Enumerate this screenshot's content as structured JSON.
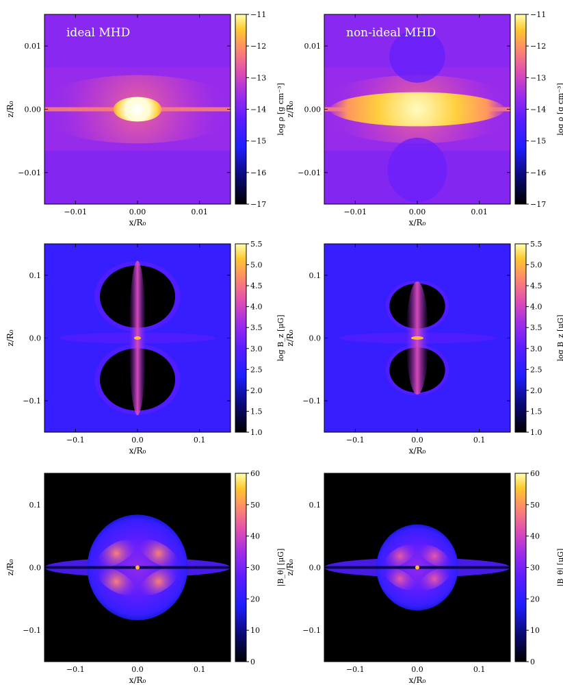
{
  "chart_data": [
    {
      "type": "heatmap",
      "panel": "density-ideal",
      "title": "ideal MHD",
      "xlabel": "x/R₀",
      "ylabel": "z/R₀",
      "colorbar_label": "log ρ [g cm⁻³]",
      "xlim": [
        -0.015,
        0.015
      ],
      "ylim": [
        -0.015,
        0.015
      ],
      "xticks": [
        -0.01,
        0.0,
        0.01
      ],
      "yticks": [
        -0.01,
        0.0,
        0.01
      ],
      "xtick_labels": [
        "−0.01",
        "0.00",
        "0.01"
      ],
      "ytick_labels": [
        "−0.01",
        "0.00",
        "0.01"
      ],
      "clim": [
        -17,
        -11
      ],
      "cticks": [
        -17,
        -16,
        -15,
        -14,
        -13,
        -12,
        -11
      ],
      "ctick_labels": [
        "−17",
        "−16",
        "−15",
        "−14",
        "−13",
        "−12",
        "−11"
      ],
      "colormap": "gnuplot2",
      "structure": "compact-bright-core"
    },
    {
      "type": "heatmap",
      "panel": "density-nonideal",
      "title": "non-ideal MHD",
      "xlabel": "x/R₀",
      "ylabel": "z/R₀",
      "colorbar_label": "log ρ [g cm⁻³]",
      "xlim": [
        -0.015,
        0.015
      ],
      "ylim": [
        -0.015,
        0.015
      ],
      "xticks": [
        -0.01,
        0.0,
        0.01
      ],
      "yticks": [
        -0.01,
        0.0,
        0.01
      ],
      "xtick_labels": [
        "−0.01",
        "0.00",
        "0.01"
      ],
      "ytick_labels": [
        "−0.01",
        "0.00",
        "0.01"
      ],
      "clim": [
        -17,
        -11
      ],
      "cticks": [
        -17,
        -16,
        -15,
        -14,
        -13,
        -12,
        -11
      ],
      "ctick_labels": [
        "−17",
        "−16",
        "−15",
        "−14",
        "−13",
        "−12",
        "−11"
      ],
      "colormap": "gnuplot2",
      "structure": "extended-disc"
    },
    {
      "type": "heatmap",
      "panel": "bz-ideal",
      "title": "",
      "xlabel": "x/R₀",
      "ylabel": "z/R₀",
      "colorbar_label": "log B_z [μG]",
      "xlim": [
        -0.15,
        0.15
      ],
      "ylim": [
        -0.15,
        0.15
      ],
      "xticks": [
        -0.1,
        0.0,
        0.1
      ],
      "yticks": [
        -0.1,
        0.0,
        0.1
      ],
      "xtick_labels": [
        "−0.1",
        "0.0",
        "0.1"
      ],
      "ytick_labels": [
        "−0.1",
        "0.0",
        "0.1"
      ],
      "clim": [
        1.0,
        5.5
      ],
      "cticks": [
        1.0,
        1.5,
        2.0,
        2.5,
        3.0,
        3.5,
        4.0,
        4.5,
        5.0,
        5.5
      ],
      "ctick_labels": [
        "1.0",
        "1.5",
        "2.0",
        "2.5",
        "3.0",
        "3.5",
        "4.0",
        "4.5",
        "5.0",
        "5.5"
      ],
      "colormap": "gnuplot2",
      "structure": "outflow-lobes-large"
    },
    {
      "type": "heatmap",
      "panel": "bz-nonideal",
      "title": "",
      "xlabel": "x/R₀",
      "ylabel": "z/R₀",
      "colorbar_label": "log B_z [μG]",
      "xlim": [
        -0.15,
        0.15
      ],
      "ylim": [
        -0.15,
        0.15
      ],
      "xticks": [
        -0.1,
        0.0,
        0.1
      ],
      "yticks": [
        -0.1,
        0.0,
        0.1
      ],
      "xtick_labels": [
        "−0.1",
        "0.0",
        "0.1"
      ],
      "ytick_labels": [
        "−0.1",
        "0.0",
        "0.1"
      ],
      "clim": [
        1.0,
        5.5
      ],
      "cticks": [
        1.0,
        1.5,
        2.0,
        2.5,
        3.0,
        3.5,
        4.0,
        4.5,
        5.0,
        5.5
      ],
      "ctick_labels": [
        "1.0",
        "1.5",
        "2.0",
        "2.5",
        "3.0",
        "3.5",
        "4.0",
        "4.5",
        "5.0",
        "5.5"
      ],
      "colormap": "gnuplot2",
      "structure": "outflow-lobes-small"
    },
    {
      "type": "heatmap",
      "panel": "btheta-ideal",
      "title": "",
      "xlabel": "x/R₀",
      "ylabel": "z/R₀",
      "colorbar_label": "|B_θ| [μG]",
      "xlim": [
        -0.15,
        0.15
      ],
      "ylim": [
        -0.15,
        0.15
      ],
      "xticks": [
        -0.1,
        0.0,
        0.1
      ],
      "yticks": [
        -0.1,
        0.0,
        0.1
      ],
      "xtick_labels": [
        "−0.1",
        "0.0",
        "0.1"
      ],
      "ytick_labels": [
        "−0.1",
        "0.0",
        "0.1"
      ],
      "clim": [
        0,
        60
      ],
      "cticks": [
        0,
        10,
        20,
        30,
        40,
        50,
        60
      ],
      "ctick_labels": [
        "0",
        "10",
        "20",
        "30",
        "40",
        "50",
        "60"
      ],
      "colormap": "gnuplot2",
      "structure": "toroidal-bubble-large"
    },
    {
      "type": "heatmap",
      "panel": "btheta-nonideal",
      "title": "",
      "xlabel": "x/R₀",
      "ylabel": "z/R₀",
      "colorbar_label": "|B_θ| [μG]",
      "xlim": [
        -0.15,
        0.15
      ],
      "ylim": [
        -0.15,
        0.15
      ],
      "xticks": [
        -0.1,
        0.0,
        0.1
      ],
      "yticks": [
        -0.1,
        0.0,
        0.1
      ],
      "xtick_labels": [
        "−0.1",
        "0.0",
        "0.1"
      ],
      "ytick_labels": [
        "−0.1",
        "0.0",
        "0.1"
      ],
      "clim": [
        0,
        60
      ],
      "cticks": [
        0,
        10,
        20,
        30,
        40,
        50,
        60
      ],
      "ctick_labels": [
        "0",
        "10",
        "20",
        "30",
        "40",
        "50",
        "60"
      ],
      "colormap": "gnuplot2",
      "structure": "toroidal-bubble-small"
    }
  ]
}
